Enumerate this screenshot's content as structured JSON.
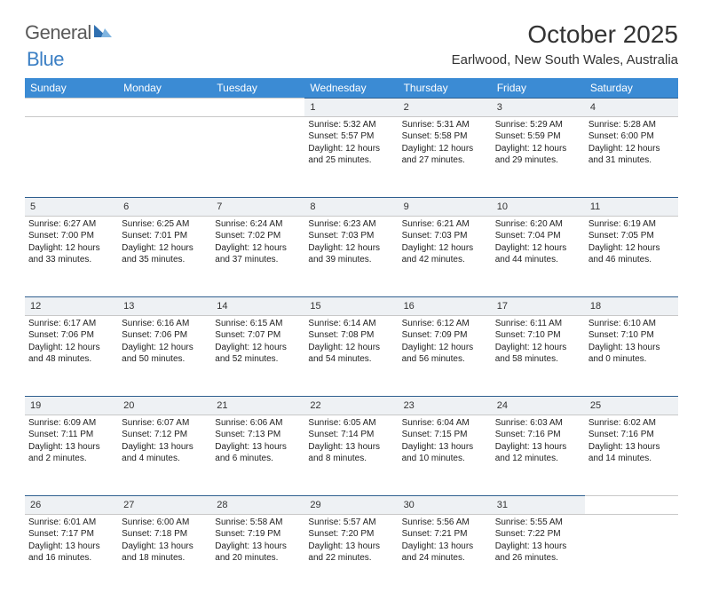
{
  "brand": {
    "text_general": "General",
    "text_blue": "Blue",
    "logo_triangle_color": "#2f6fb0",
    "logo_triangle_light": "#7fb4e0"
  },
  "header": {
    "month_title": "October 2025",
    "location": "Earlwood, New South Wales, Australia"
  },
  "colors": {
    "header_row_bg": "#3b8bd4",
    "header_row_text": "#ffffff",
    "daynum_bg": "#eef1f4",
    "daynum_border_top": "#2f5f8f",
    "cell_border": "#c8c8c8"
  },
  "day_labels": [
    "Sunday",
    "Monday",
    "Tuesday",
    "Wednesday",
    "Thursday",
    "Friday",
    "Saturday"
  ],
  "weeks": [
    {
      "nums": [
        "",
        "",
        "",
        "1",
        "2",
        "3",
        "4"
      ],
      "cells": [
        null,
        null,
        null,
        {
          "sunrise": "Sunrise: 5:32 AM",
          "sunset": "Sunset: 5:57 PM",
          "day1": "Daylight: 12 hours",
          "day2": "and 25 minutes."
        },
        {
          "sunrise": "Sunrise: 5:31 AM",
          "sunset": "Sunset: 5:58 PM",
          "day1": "Daylight: 12 hours",
          "day2": "and 27 minutes."
        },
        {
          "sunrise": "Sunrise: 5:29 AM",
          "sunset": "Sunset: 5:59 PM",
          "day1": "Daylight: 12 hours",
          "day2": "and 29 minutes."
        },
        {
          "sunrise": "Sunrise: 5:28 AM",
          "sunset": "Sunset: 6:00 PM",
          "day1": "Daylight: 12 hours",
          "day2": "and 31 minutes."
        }
      ]
    },
    {
      "nums": [
        "5",
        "6",
        "7",
        "8",
        "9",
        "10",
        "11"
      ],
      "cells": [
        {
          "sunrise": "Sunrise: 6:27 AM",
          "sunset": "Sunset: 7:00 PM",
          "day1": "Daylight: 12 hours",
          "day2": "and 33 minutes."
        },
        {
          "sunrise": "Sunrise: 6:25 AM",
          "sunset": "Sunset: 7:01 PM",
          "day1": "Daylight: 12 hours",
          "day2": "and 35 minutes."
        },
        {
          "sunrise": "Sunrise: 6:24 AM",
          "sunset": "Sunset: 7:02 PM",
          "day1": "Daylight: 12 hours",
          "day2": "and 37 minutes."
        },
        {
          "sunrise": "Sunrise: 6:23 AM",
          "sunset": "Sunset: 7:03 PM",
          "day1": "Daylight: 12 hours",
          "day2": "and 39 minutes."
        },
        {
          "sunrise": "Sunrise: 6:21 AM",
          "sunset": "Sunset: 7:03 PM",
          "day1": "Daylight: 12 hours",
          "day2": "and 42 minutes."
        },
        {
          "sunrise": "Sunrise: 6:20 AM",
          "sunset": "Sunset: 7:04 PM",
          "day1": "Daylight: 12 hours",
          "day2": "and 44 minutes."
        },
        {
          "sunrise": "Sunrise: 6:19 AM",
          "sunset": "Sunset: 7:05 PM",
          "day1": "Daylight: 12 hours",
          "day2": "and 46 minutes."
        }
      ]
    },
    {
      "nums": [
        "12",
        "13",
        "14",
        "15",
        "16",
        "17",
        "18"
      ],
      "cells": [
        {
          "sunrise": "Sunrise: 6:17 AM",
          "sunset": "Sunset: 7:06 PM",
          "day1": "Daylight: 12 hours",
          "day2": "and 48 minutes."
        },
        {
          "sunrise": "Sunrise: 6:16 AM",
          "sunset": "Sunset: 7:06 PM",
          "day1": "Daylight: 12 hours",
          "day2": "and 50 minutes."
        },
        {
          "sunrise": "Sunrise: 6:15 AM",
          "sunset": "Sunset: 7:07 PM",
          "day1": "Daylight: 12 hours",
          "day2": "and 52 minutes."
        },
        {
          "sunrise": "Sunrise: 6:14 AM",
          "sunset": "Sunset: 7:08 PM",
          "day1": "Daylight: 12 hours",
          "day2": "and 54 minutes."
        },
        {
          "sunrise": "Sunrise: 6:12 AM",
          "sunset": "Sunset: 7:09 PM",
          "day1": "Daylight: 12 hours",
          "day2": "and 56 minutes."
        },
        {
          "sunrise": "Sunrise: 6:11 AM",
          "sunset": "Sunset: 7:10 PM",
          "day1": "Daylight: 12 hours",
          "day2": "and 58 minutes."
        },
        {
          "sunrise": "Sunrise: 6:10 AM",
          "sunset": "Sunset: 7:10 PM",
          "day1": "Daylight: 13 hours",
          "day2": "and 0 minutes."
        }
      ]
    },
    {
      "nums": [
        "19",
        "20",
        "21",
        "22",
        "23",
        "24",
        "25"
      ],
      "cells": [
        {
          "sunrise": "Sunrise: 6:09 AM",
          "sunset": "Sunset: 7:11 PM",
          "day1": "Daylight: 13 hours",
          "day2": "and 2 minutes."
        },
        {
          "sunrise": "Sunrise: 6:07 AM",
          "sunset": "Sunset: 7:12 PM",
          "day1": "Daylight: 13 hours",
          "day2": "and 4 minutes."
        },
        {
          "sunrise": "Sunrise: 6:06 AM",
          "sunset": "Sunset: 7:13 PM",
          "day1": "Daylight: 13 hours",
          "day2": "and 6 minutes."
        },
        {
          "sunrise": "Sunrise: 6:05 AM",
          "sunset": "Sunset: 7:14 PM",
          "day1": "Daylight: 13 hours",
          "day2": "and 8 minutes."
        },
        {
          "sunrise": "Sunrise: 6:04 AM",
          "sunset": "Sunset: 7:15 PM",
          "day1": "Daylight: 13 hours",
          "day2": "and 10 minutes."
        },
        {
          "sunrise": "Sunrise: 6:03 AM",
          "sunset": "Sunset: 7:16 PM",
          "day1": "Daylight: 13 hours",
          "day2": "and 12 minutes."
        },
        {
          "sunrise": "Sunrise: 6:02 AM",
          "sunset": "Sunset: 7:16 PM",
          "day1": "Daylight: 13 hours",
          "day2": "and 14 minutes."
        }
      ]
    },
    {
      "nums": [
        "26",
        "27",
        "28",
        "29",
        "30",
        "31",
        ""
      ],
      "cells": [
        {
          "sunrise": "Sunrise: 6:01 AM",
          "sunset": "Sunset: 7:17 PM",
          "day1": "Daylight: 13 hours",
          "day2": "and 16 minutes."
        },
        {
          "sunrise": "Sunrise: 6:00 AM",
          "sunset": "Sunset: 7:18 PM",
          "day1": "Daylight: 13 hours",
          "day2": "and 18 minutes."
        },
        {
          "sunrise": "Sunrise: 5:58 AM",
          "sunset": "Sunset: 7:19 PM",
          "day1": "Daylight: 13 hours",
          "day2": "and 20 minutes."
        },
        {
          "sunrise": "Sunrise: 5:57 AM",
          "sunset": "Sunset: 7:20 PM",
          "day1": "Daylight: 13 hours",
          "day2": "and 22 minutes."
        },
        {
          "sunrise": "Sunrise: 5:56 AM",
          "sunset": "Sunset: 7:21 PM",
          "day1": "Daylight: 13 hours",
          "day2": "and 24 minutes."
        },
        {
          "sunrise": "Sunrise: 5:55 AM",
          "sunset": "Sunset: 7:22 PM",
          "day1": "Daylight: 13 hours",
          "day2": "and 26 minutes."
        },
        null
      ]
    }
  ]
}
